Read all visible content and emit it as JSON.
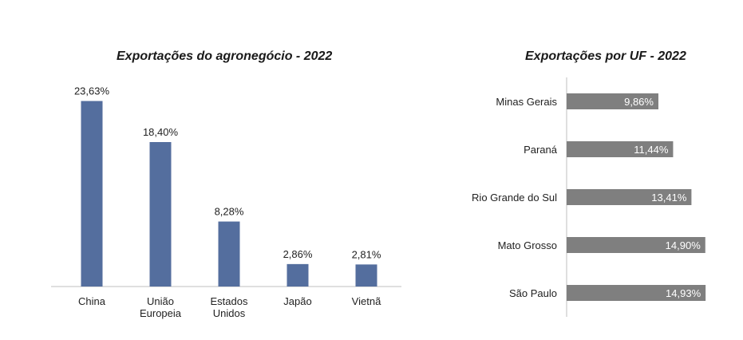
{
  "chart_data": [
    {
      "type": "bar",
      "title": "Exportações do agronegócio - 2022",
      "categories": [
        [
          "China"
        ],
        [
          "União",
          "Europeia"
        ],
        [
          "Estados",
          "Unidos"
        ],
        [
          "Japão"
        ],
        [
          "Vietnã"
        ]
      ],
      "values": [
        23.63,
        18.4,
        8.28,
        2.86,
        2.81
      ],
      "labels": [
        "23,63%",
        "18,40%",
        "8,28%",
        "2,86%",
        "2,81%"
      ],
      "ylim": [
        0,
        24.5
      ],
      "color": "#546e9e",
      "grid": false,
      "legend": "none"
    },
    {
      "type": "bar",
      "orientation": "horizontal",
      "title": "Exportações por UF - 2022",
      "categories": [
        "Minas Gerais",
        "Paraná",
        "Rio Grande do Sul",
        "Mato Grosso",
        "São Paulo"
      ],
      "values": [
        9.86,
        11.44,
        13.41,
        14.9,
        14.93
      ],
      "labels": [
        "9,86%",
        "11,44%",
        "13,41%",
        "14,90%",
        "14,93%"
      ],
      "xlim": [
        0,
        15.5
      ],
      "color": "#7f7f7f",
      "grid": false,
      "legend": "none"
    }
  ]
}
